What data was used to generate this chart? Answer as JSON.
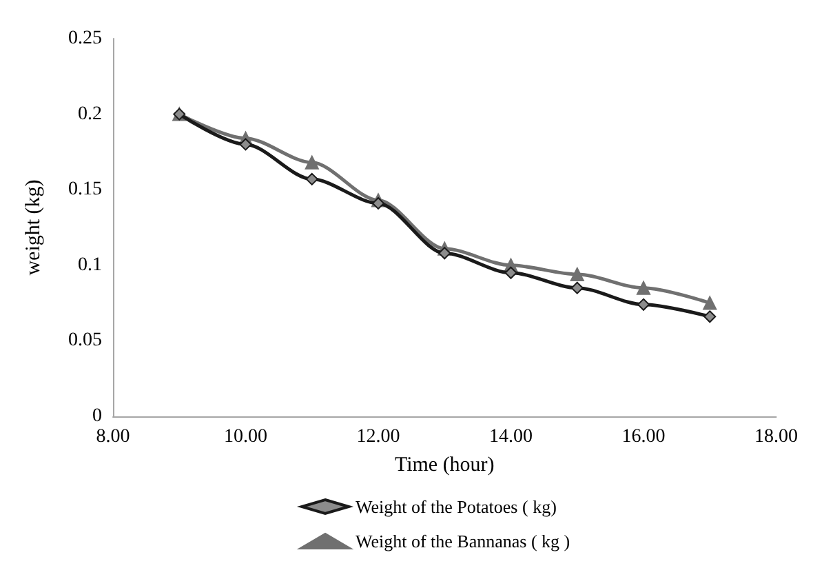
{
  "chart_data": {
    "type": "line",
    "xlabel": "Time (hour)",
    "ylabel": "weight (kg)",
    "x": [
      9,
      10,
      11,
      12,
      13,
      14,
      15,
      16,
      17
    ],
    "series": [
      {
        "name": "Weight of the Potatoes ( kg)",
        "color": "#1a1a1a",
        "marker": "diamond",
        "values": [
          0.2,
          0.18,
          0.157,
          0.141,
          0.108,
          0.095,
          0.085,
          0.074,
          0.066
        ]
      },
      {
        "name": "Weight of the Bannanas ( kg )",
        "color": "#707070",
        "marker": "triangle",
        "values": [
          0.2,
          0.184,
          0.168,
          0.143,
          0.111,
          0.1,
          0.094,
          0.085,
          0.075
        ]
      }
    ],
    "xlim": [
      8,
      18
    ],
    "xticks": [
      {
        "value": 8,
        "label": "8.00"
      },
      {
        "value": 10,
        "label": "10.00"
      },
      {
        "value": 12,
        "label": "12.00"
      },
      {
        "value": 14,
        "label": "14.00"
      },
      {
        "value": 16,
        "label": "16.00"
      },
      {
        "value": 18,
        "label": "18.00"
      }
    ],
    "ylim": [
      0,
      0.25
    ],
    "yticks": [
      0,
      0.05,
      0.1,
      0.15,
      0.2,
      0.25
    ],
    "grid": false,
    "legend": "bottom",
    "line_style": "solid"
  }
}
